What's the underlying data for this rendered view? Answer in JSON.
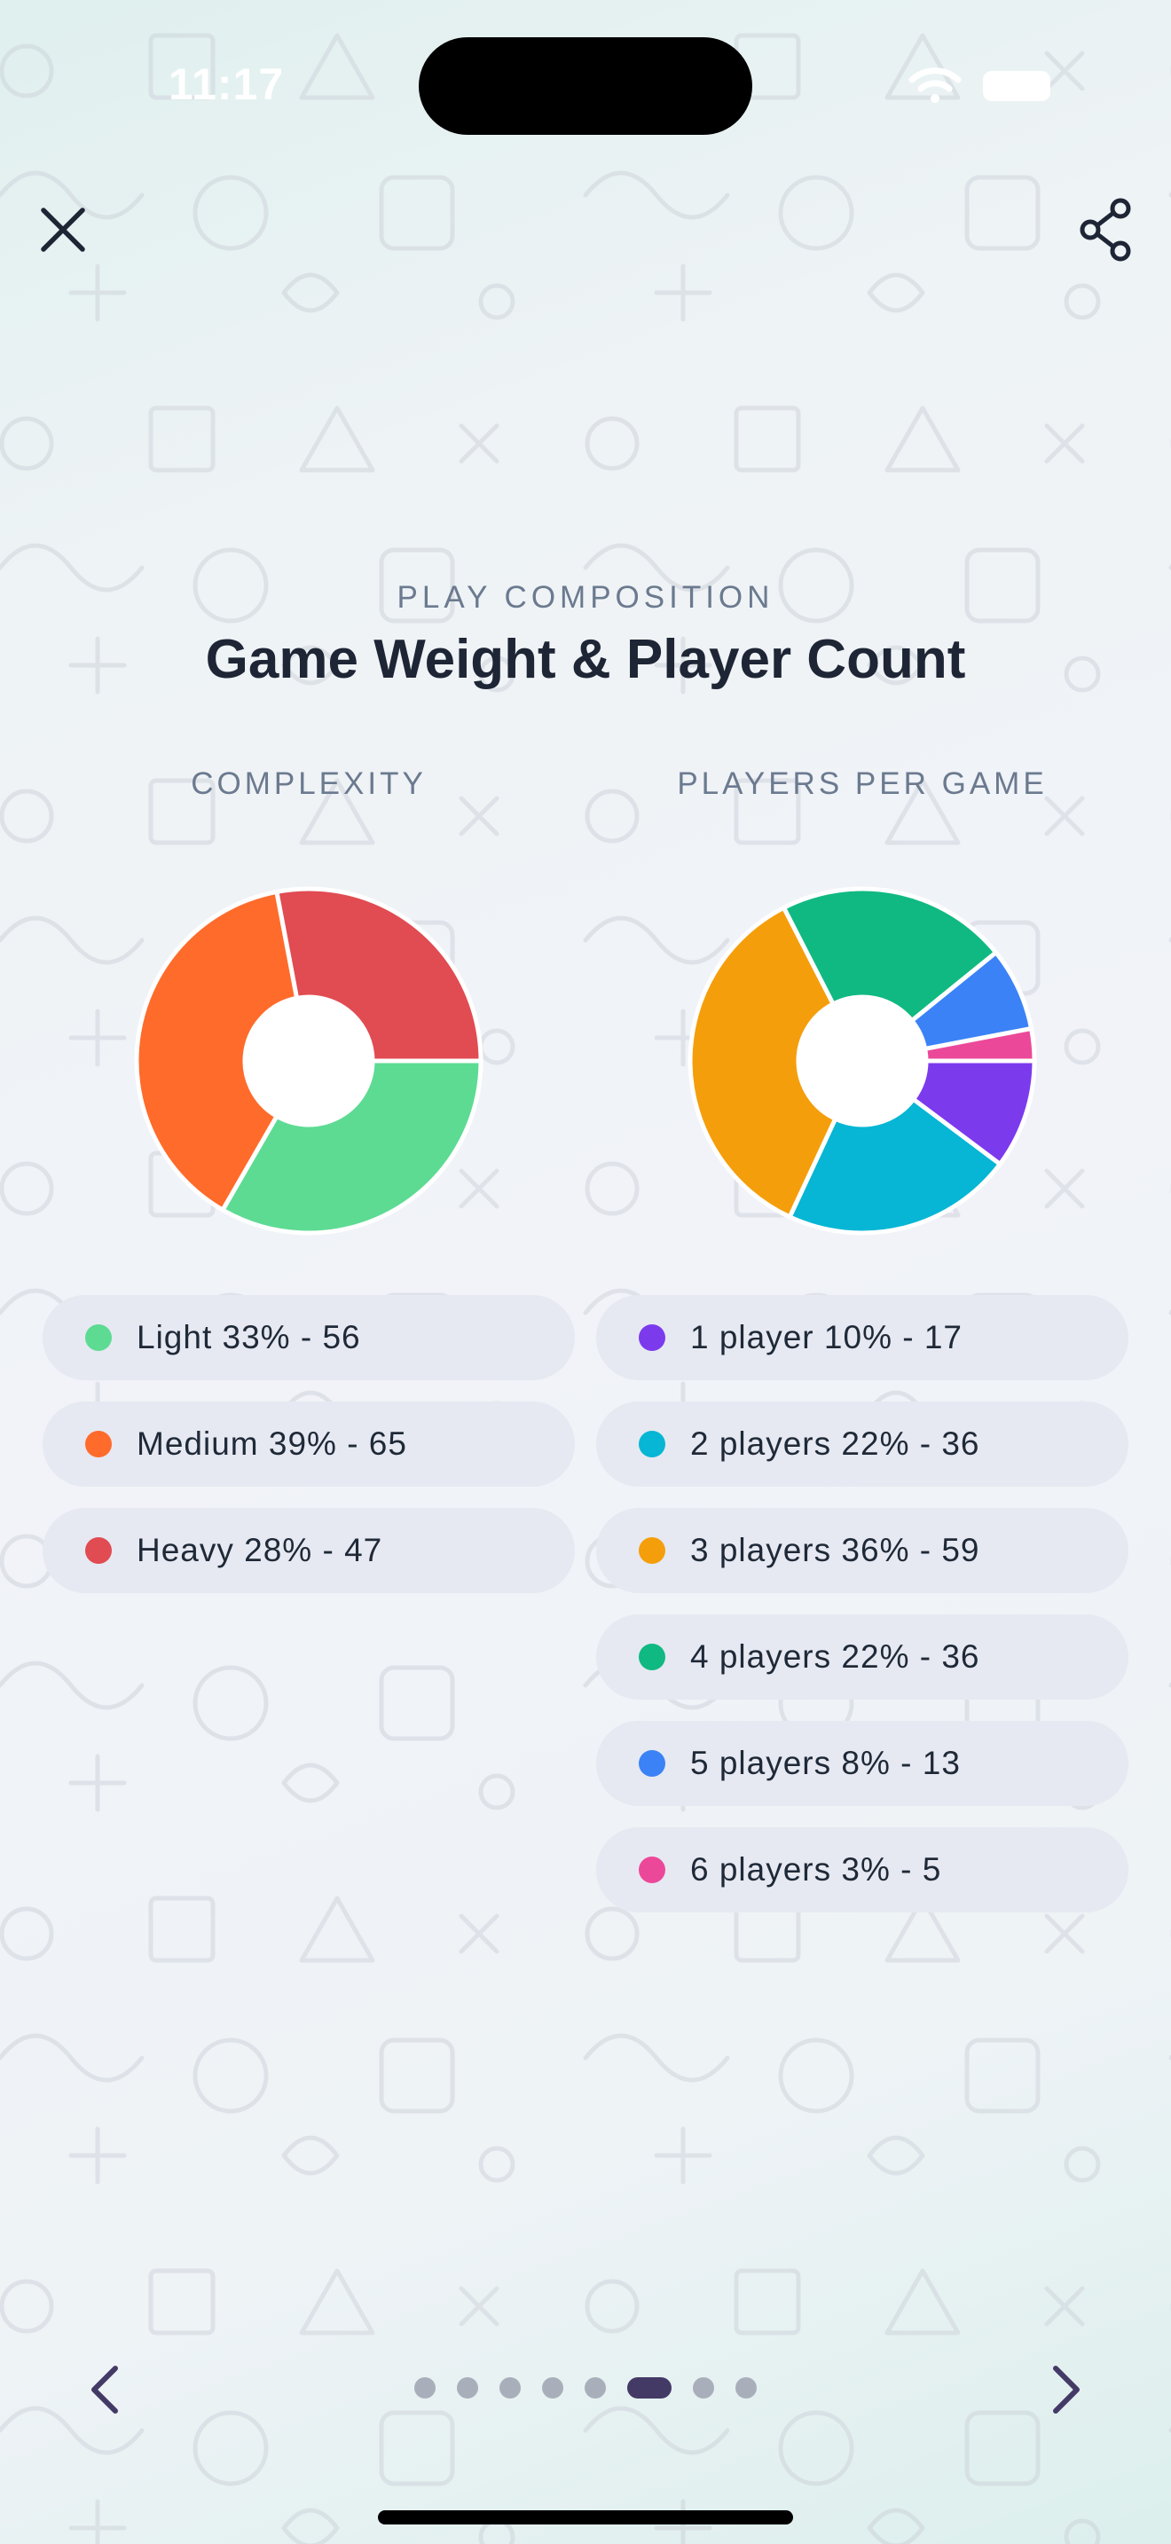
{
  "status_bar": {
    "time": "11:17"
  },
  "header": {
    "close_icon": "close-icon",
    "share_icon": "share-icon"
  },
  "section": {
    "eyebrow": "PLAY COMPOSITION",
    "title": "Game Weight & Player Count"
  },
  "charts": {
    "complexity_heading": "COMPLEXITY",
    "players_heading": "PLAYERS PER GAME"
  },
  "complexity_legend": [
    {
      "label": "Light 33% - 56",
      "color": "#5ddb93"
    },
    {
      "label": "Medium 39% - 65",
      "color": "#ff6b2b"
    },
    {
      "label": "Heavy 28% - 47",
      "color": "#e14b52"
    }
  ],
  "players_legend": [
    {
      "label": "1 player 10% - 17",
      "color": "#7c3aed"
    },
    {
      "label": "2 players 22% - 36",
      "color": "#06b6d4"
    },
    {
      "label": "3 players 36% - 59",
      "color": "#f59e0b"
    },
    {
      "label": "4 players 22% - 36",
      "color": "#10b981"
    },
    {
      "label": "5 players 8% - 13",
      "color": "#3b82f6"
    },
    {
      "label": "6 players 3% - 5",
      "color": "#ec4899"
    }
  ],
  "chart_data": [
    {
      "type": "pie",
      "title": "COMPLEXITY",
      "categories": [
        "Light",
        "Medium",
        "Heavy"
      ],
      "values": [
        56,
        65,
        47
      ],
      "percents": [
        33,
        39,
        28
      ],
      "colors": [
        "#5ddb93",
        "#ff6b2b",
        "#e14b52"
      ]
    },
    {
      "type": "pie",
      "title": "PLAYERS PER GAME",
      "categories": [
        "1 player",
        "2 players",
        "3 players",
        "4 players",
        "5 players",
        "6 players"
      ],
      "values": [
        17,
        36,
        59,
        36,
        13,
        5
      ],
      "percents": [
        10,
        22,
        36,
        22,
        8,
        3
      ],
      "colors": [
        "#7c3aed",
        "#06b6d4",
        "#f59e0b",
        "#10b981",
        "#3b82f6",
        "#ec4899"
      ]
    }
  ],
  "pagination": {
    "pages": 8,
    "current": 6,
    "prev_icon": "chevron-left-icon",
    "next_icon": "chevron-right-icon"
  },
  "theme": {
    "accent": "#443a66",
    "pill_bg": "#e6e9f2",
    "muted_text": "#6b7a8f"
  }
}
